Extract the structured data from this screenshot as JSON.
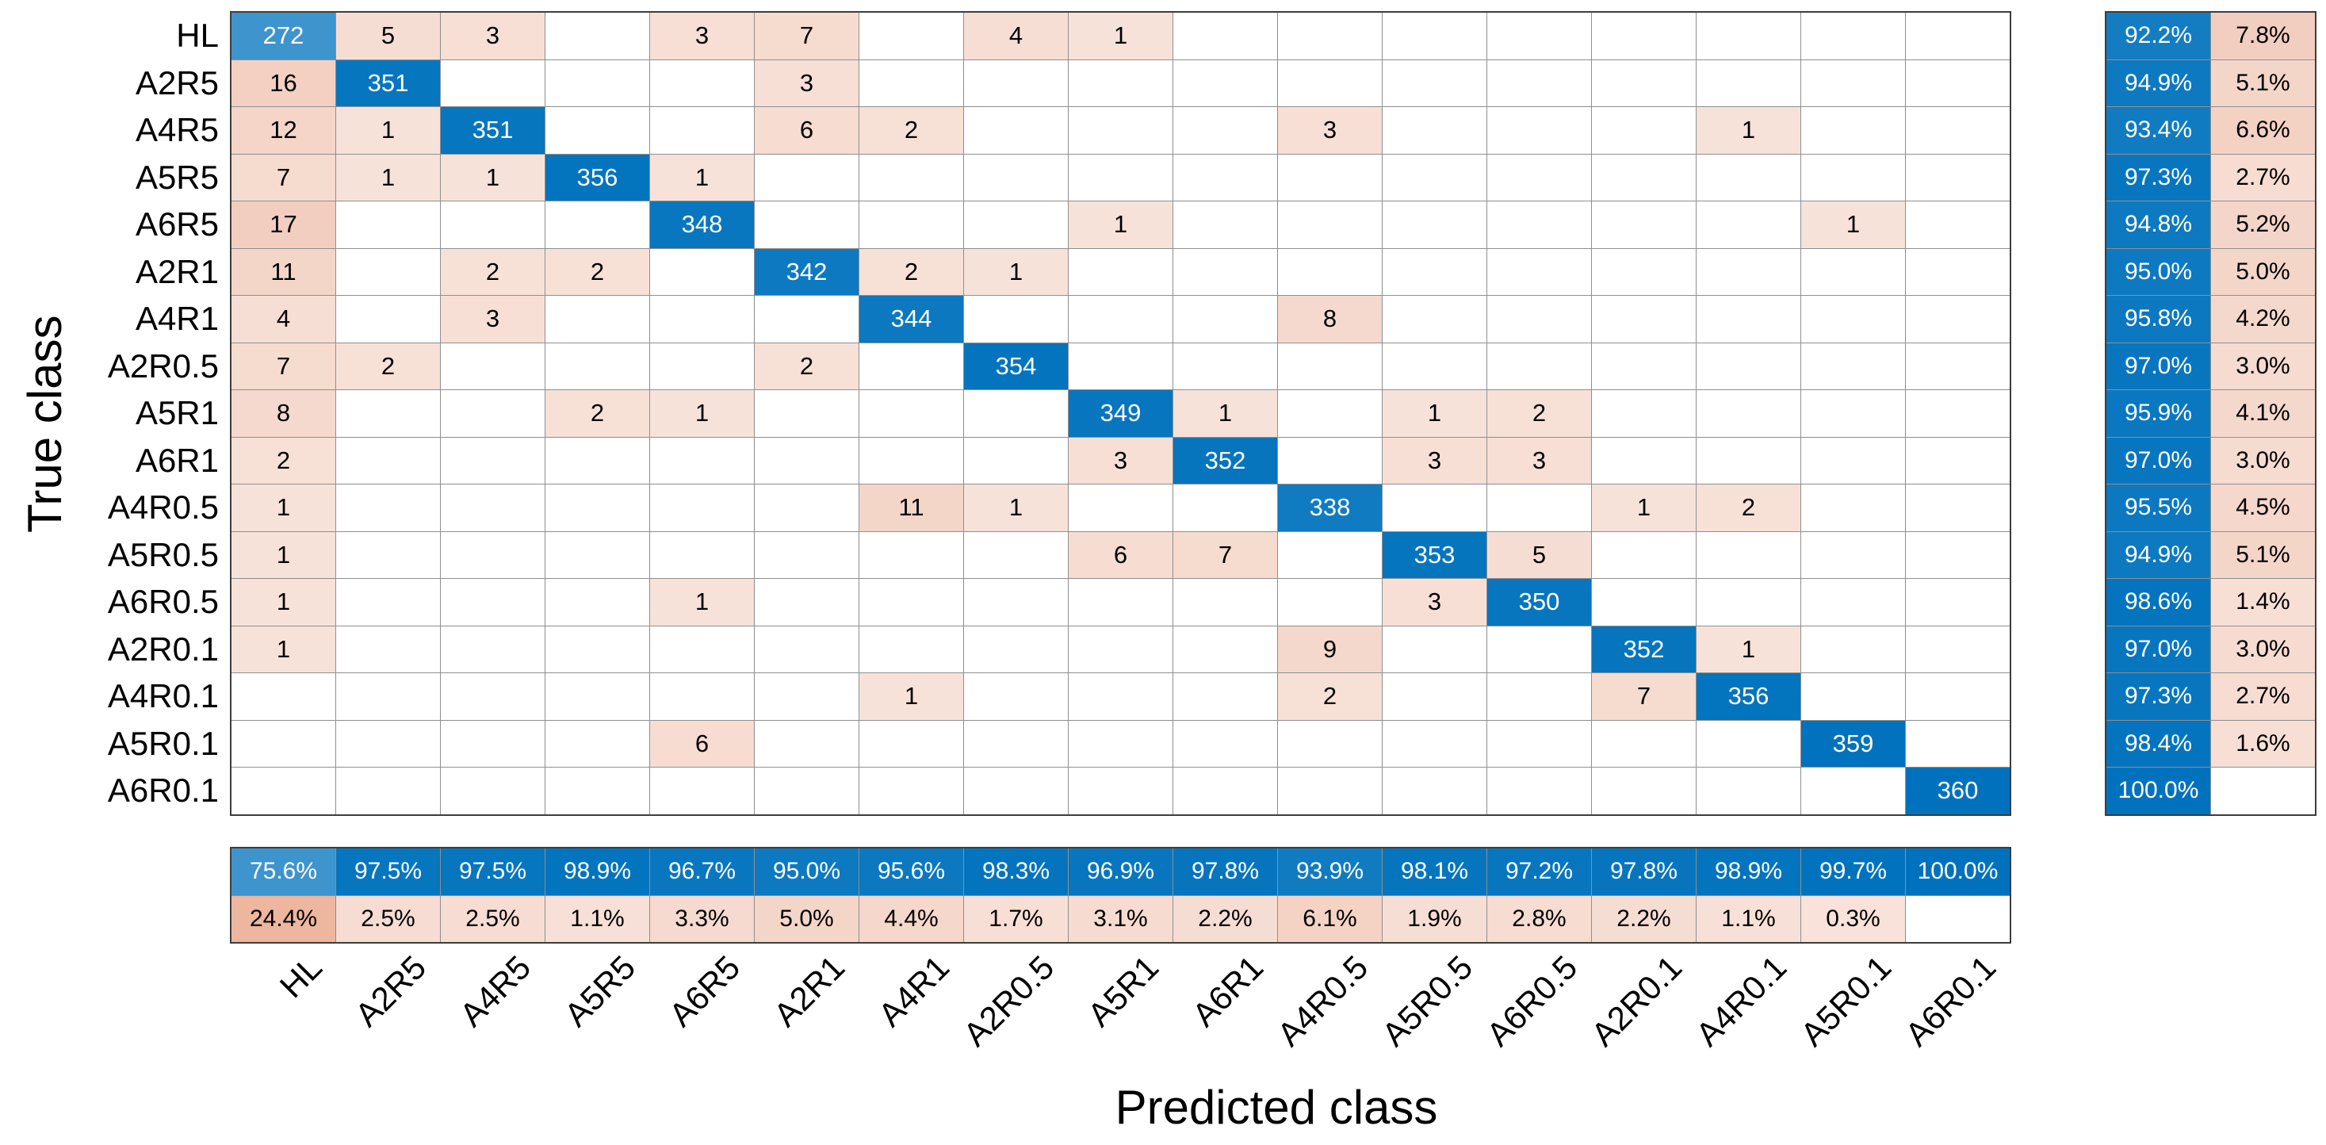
{
  "axes": {
    "xlabel": "Predicted class",
    "ylabel": "True class"
  },
  "chart_data": {
    "type": "heatmap",
    "subtype": "confusion-matrix",
    "title": "",
    "classes": [
      "HL",
      "A2R5",
      "A4R5",
      "A5R5",
      "A6R5",
      "A2R1",
      "A4R1",
      "A2R0.5",
      "A5R1",
      "A6R1",
      "A4R0.5",
      "A5R0.5",
      "A6R0.5",
      "A2R0.1",
      "A4R0.1",
      "A5R0.1",
      "A6R0.1"
    ],
    "matrix_note": "rows = true class, columns = predicted class, 0 = empty cell",
    "matrix": [
      [
        272,
        5,
        3,
        0,
        3,
        7,
        0,
        4,
        1,
        0,
        0,
        0,
        0,
        0,
        0,
        0,
        0
      ],
      [
        16,
        351,
        0,
        0,
        0,
        3,
        0,
        0,
        0,
        0,
        0,
        0,
        0,
        0,
        0,
        0,
        0
      ],
      [
        12,
        1,
        351,
        0,
        0,
        6,
        2,
        0,
        0,
        0,
        3,
        0,
        0,
        0,
        1,
        0,
        0
      ],
      [
        7,
        1,
        1,
        356,
        1,
        0,
        0,
        0,
        0,
        0,
        0,
        0,
        0,
        0,
        0,
        0,
        0
      ],
      [
        17,
        0,
        0,
        0,
        348,
        0,
        0,
        0,
        1,
        0,
        0,
        0,
        0,
        0,
        0,
        1,
        0
      ],
      [
        11,
        0,
        2,
        2,
        0,
        342,
        2,
        1,
        0,
        0,
        0,
        0,
        0,
        0,
        0,
        0,
        0
      ],
      [
        4,
        0,
        3,
        0,
        0,
        0,
        344,
        0,
        0,
        0,
        8,
        0,
        0,
        0,
        0,
        0,
        0
      ],
      [
        7,
        2,
        0,
        0,
        0,
        2,
        0,
        354,
        0,
        0,
        0,
        0,
        0,
        0,
        0,
        0,
        0
      ],
      [
        8,
        0,
        0,
        2,
        1,
        0,
        0,
        0,
        349,
        1,
        0,
        1,
        2,
        0,
        0,
        0,
        0
      ],
      [
        2,
        0,
        0,
        0,
        0,
        0,
        0,
        0,
        3,
        352,
        0,
        3,
        3,
        0,
        0,
        0,
        0
      ],
      [
        1,
        0,
        0,
        0,
        0,
        0,
        11,
        1,
        0,
        0,
        338,
        0,
        0,
        1,
        2,
        0,
        0
      ],
      [
        1,
        0,
        0,
        0,
        0,
        0,
        0,
        0,
        6,
        7,
        0,
        353,
        5,
        0,
        0,
        0,
        0
      ],
      [
        1,
        0,
        0,
        0,
        1,
        0,
        0,
        0,
        0,
        0,
        0,
        3,
        350,
        0,
        0,
        0,
        0
      ],
      [
        1,
        0,
        0,
        0,
        0,
        0,
        0,
        0,
        0,
        0,
        9,
        0,
        0,
        352,
        1,
        0,
        0
      ],
      [
        0,
        0,
        0,
        0,
        0,
        0,
        1,
        0,
        0,
        0,
        2,
        0,
        0,
        7,
        356,
        0,
        0
      ],
      [
        0,
        0,
        0,
        0,
        6,
        0,
        0,
        0,
        0,
        0,
        0,
        0,
        0,
        0,
        0,
        359,
        0
      ],
      [
        0,
        0,
        0,
        0,
        0,
        0,
        0,
        0,
        0,
        0,
        0,
        0,
        0,
        0,
        0,
        0,
        360
      ]
    ],
    "row_summary": {
      "pct_correct": [
        "92.2%",
        "94.9%",
        "93.4%",
        "97.3%",
        "94.8%",
        "95.0%",
        "95.8%",
        "97.0%",
        "95.9%",
        "97.0%",
        "95.5%",
        "94.9%",
        "98.6%",
        "97.0%",
        "97.3%",
        "98.4%",
        "100.0%"
      ],
      "pct_incorrect": [
        "7.8%",
        "5.1%",
        "6.6%",
        "2.7%",
        "5.2%",
        "5.0%",
        "4.2%",
        "3.0%",
        "4.1%",
        "3.0%",
        "4.5%",
        "5.1%",
        "1.4%",
        "3.0%",
        "2.7%",
        "1.6%",
        ""
      ]
    },
    "col_summary": {
      "pct_correct": [
        "75.6%",
        "97.5%",
        "97.5%",
        "98.9%",
        "96.7%",
        "95.0%",
        "95.6%",
        "98.3%",
        "96.9%",
        "97.8%",
        "93.9%",
        "98.1%",
        "97.2%",
        "97.8%",
        "98.9%",
        "99.7%",
        "100.0%"
      ],
      "pct_incorrect": [
        "24.4%",
        "2.5%",
        "2.5%",
        "1.1%",
        "3.3%",
        "5.0%",
        "4.4%",
        "1.7%",
        "3.1%",
        "2.2%",
        "6.1%",
        "1.9%",
        "2.8%",
        "2.2%",
        "1.1%",
        "0.3%",
        ""
      ]
    },
    "layout": {
      "legend": "none",
      "grid": "on",
      "x_tick_rotation_deg": 45
    }
  },
  "colors": {
    "diagonal_blue": "#0072BD",
    "offdiagonal_pink_base": "#D96C3F",
    "cell_background": "#FFFFFF",
    "grid_line": "#8F8F8F",
    "outer_border": "#3D3D3D",
    "text_on_blue": "#FFFFFF",
    "text_on_pink": "#000000"
  }
}
